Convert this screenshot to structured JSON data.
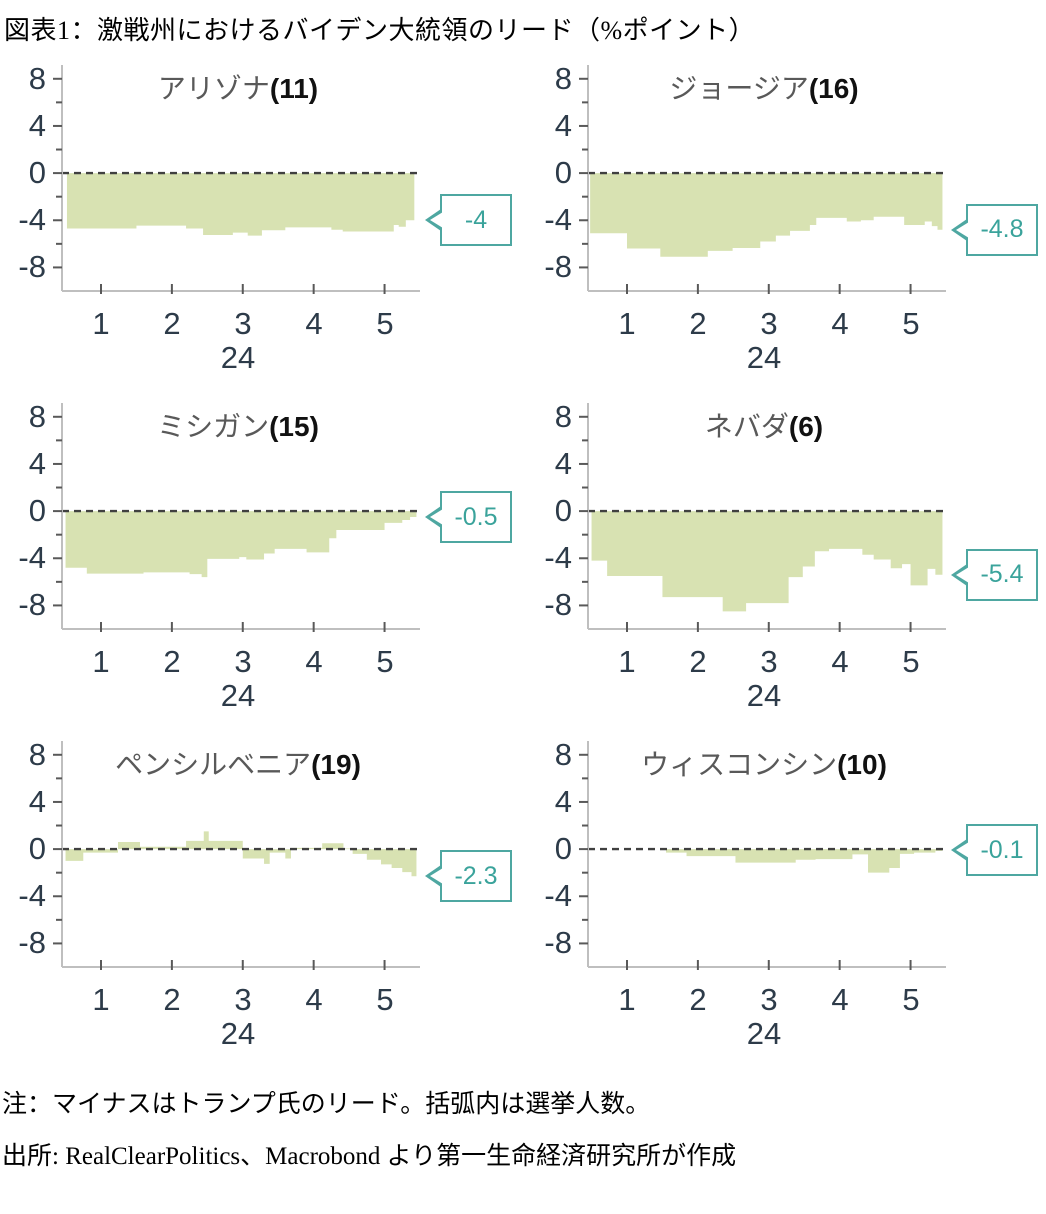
{
  "figure_title": "図表1：激戦州におけるバイデン大統領のリード（%ポイント）",
  "notes": {
    "note": "注：マイナスはトランプ氏のリード。括弧内は選挙人数。",
    "source": "出所: RealClearPolitics、Macrobond より第一生命経済研究所が作成"
  },
  "axis": {
    "y_ticks": [
      "8",
      "4",
      "0",
      "-4",
      "-8"
    ],
    "y_minor_ticks": [
      6,
      2,
      -2,
      -6
    ],
    "x_ticks": [
      "1",
      "2",
      "3",
      "4",
      "5"
    ],
    "year_label": "24",
    "ylim": [
      -10,
      9
    ],
    "xlim": [
      0.45,
      5.5
    ],
    "grid": "off",
    "zero_line": "dashed"
  },
  "colors": {
    "area": "#d8e2b2",
    "zero_line": "#404040",
    "axis": "#bfbfbf",
    "tick": "#595959",
    "tick_label": "#2d3b49",
    "callout_border": "#4ea7a1",
    "callout_text": "#3aa39b",
    "title_state": "#595959",
    "title_votes": "#111111"
  },
  "chart_data": [
    {
      "type": "area",
      "state": "アリゾナ",
      "votes_label": "(11)",
      "electoral_votes": 11,
      "callout_label": "-4",
      "callout_value": -4,
      "x_end": 5.42,
      "points": [
        [
          0.52,
          -4.7
        ],
        [
          1.5,
          -4.45
        ],
        [
          2.2,
          -4.7
        ],
        [
          2.44,
          -5.25
        ],
        [
          2.86,
          -5.05
        ],
        [
          3.07,
          -5.3
        ],
        [
          3.27,
          -4.85
        ],
        [
          3.6,
          -4.6
        ],
        [
          4.25,
          -4.8
        ],
        [
          4.41,
          -4.95
        ],
        [
          5.13,
          -4.4
        ],
        [
          5.2,
          -4.55
        ],
        [
          5.3,
          -4.0
        ]
      ]
    },
    {
      "type": "area",
      "state": "ジョージア",
      "votes_label": "(16)",
      "electoral_votes": 16,
      "callout_label": "-4.8",
      "callout_value": -4.8,
      "x_end": 5.45,
      "points": [
        [
          0.48,
          -5.1
        ],
        [
          1.0,
          -6.4
        ],
        [
          1.47,
          -7.1
        ],
        [
          2.14,
          -6.6
        ],
        [
          2.49,
          -6.35
        ],
        [
          2.88,
          -5.8
        ],
        [
          3.1,
          -5.3
        ],
        [
          3.3,
          -4.9
        ],
        [
          3.58,
          -4.4
        ],
        [
          3.67,
          -3.8
        ],
        [
          4.1,
          -4.1
        ],
        [
          4.3,
          -4.0
        ],
        [
          4.48,
          -3.7
        ],
        [
          4.91,
          -4.4
        ],
        [
          5.2,
          -4.1
        ],
        [
          5.3,
          -4.5
        ],
        [
          5.38,
          -4.8
        ]
      ]
    },
    {
      "type": "area",
      "state": "ミシガン",
      "votes_label": "(15)",
      "electoral_votes": 15,
      "callout_label": "-0.5",
      "callout_value": -0.5,
      "x_end": 5.45,
      "points": [
        [
          0.5,
          -4.8
        ],
        [
          0.8,
          -5.3
        ],
        [
          1.6,
          -5.2
        ],
        [
          2.25,
          -5.35
        ],
        [
          2.42,
          -5.6
        ],
        [
          2.5,
          -4.05
        ],
        [
          2.95,
          -3.9
        ],
        [
          3.05,
          -4.1
        ],
        [
          3.3,
          -3.6
        ],
        [
          3.45,
          -3.2
        ],
        [
          3.9,
          -3.5
        ],
        [
          4.22,
          -2.3
        ],
        [
          4.32,
          -1.6
        ],
        [
          5.0,
          -1.0
        ],
        [
          5.25,
          -0.75
        ],
        [
          5.36,
          -0.5
        ]
      ]
    },
    {
      "type": "area",
      "state": "ネバダ",
      "votes_label": "(6)",
      "electoral_votes": 6,
      "callout_label": "-5.4",
      "callout_value": -5.4,
      "x_end": 5.45,
      "points": [
        [
          0.5,
          -4.2
        ],
        [
          0.72,
          -5.5
        ],
        [
          1.5,
          -7.3
        ],
        [
          2.35,
          -8.5
        ],
        [
          2.68,
          -7.8
        ],
        [
          3.28,
          -5.6
        ],
        [
          3.48,
          -4.7
        ],
        [
          3.65,
          -3.4
        ],
        [
          3.85,
          -3.2
        ],
        [
          4.32,
          -3.7
        ],
        [
          4.48,
          -4.1
        ],
        [
          4.72,
          -4.85
        ],
        [
          4.88,
          -4.5
        ],
        [
          5.0,
          -6.3
        ],
        [
          5.24,
          -4.9
        ],
        [
          5.35,
          -5.4
        ]
      ]
    },
    {
      "type": "area",
      "state": "ペンシルベニア",
      "votes_label": "(19)",
      "electoral_votes": 19,
      "callout_label": "-2.3",
      "callout_value": -2.3,
      "x_end": 5.45,
      "points": [
        [
          0.5,
          -1.0
        ],
        [
          0.75,
          -0.3
        ],
        [
          1.24,
          0.6
        ],
        [
          1.55,
          0.2
        ],
        [
          2.2,
          0.7
        ],
        [
          2.45,
          1.5
        ],
        [
          2.52,
          0.7
        ],
        [
          3.0,
          -0.8
        ],
        [
          3.3,
          -1.25
        ],
        [
          3.38,
          -0.3
        ],
        [
          3.6,
          -0.8
        ],
        [
          3.68,
          0.1
        ],
        [
          4.12,
          0.5
        ],
        [
          4.42,
          0.05
        ],
        [
          4.55,
          -0.4
        ],
        [
          4.75,
          -0.9
        ],
        [
          4.95,
          -1.3
        ],
        [
          5.1,
          -1.6
        ],
        [
          5.25,
          -1.95
        ],
        [
          5.38,
          -2.3
        ]
      ]
    },
    {
      "type": "area",
      "state": "ウィスコンシン",
      "votes_label": "(10)",
      "electoral_votes": 10,
      "callout_label": "-0.1",
      "callout_value": -0.1,
      "x_end": 5.45,
      "points": [
        [
          1.55,
          -0.3
        ],
        [
          1.84,
          -0.6
        ],
        [
          2.53,
          -1.15
        ],
        [
          3.38,
          -0.9
        ],
        [
          3.66,
          -0.85
        ],
        [
          4.18,
          -0.45
        ],
        [
          4.4,
          -2.0
        ],
        [
          4.7,
          -1.6
        ],
        [
          4.85,
          -0.4
        ],
        [
          5.05,
          -0.3
        ],
        [
          5.35,
          -0.15
        ]
      ]
    }
  ]
}
